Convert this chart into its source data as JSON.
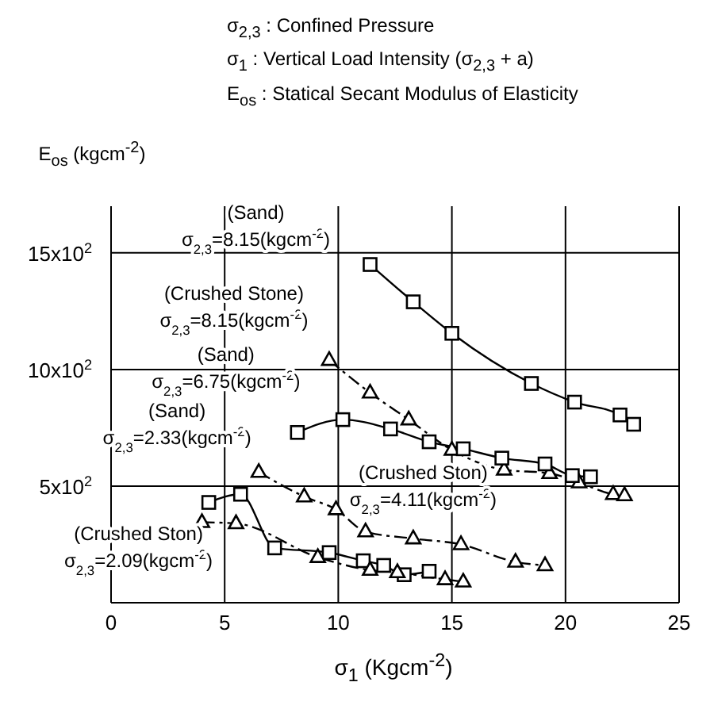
{
  "chart_data": {
    "type": "line",
    "annotations": [
      "σ$_{2,3}$ : Confined Pressure",
      "σ$_{1}$ : Vertical Load Intensity (σ$_{2,3}$ + a)",
      "E$_{os}$ : Statical Secant Modulus of Elasticity"
    ],
    "xlabel": "σ$_{1}$ (Kgcm$^{-2}$)",
    "ylabel": "E$_{os}$ (kgcm$^{-2}$)",
    "xlim": [
      0,
      25
    ],
    "xticks": [
      0,
      5,
      10,
      15,
      20,
      25
    ],
    "ylim": [
      0,
      1700
    ],
    "yticks": [
      {
        "value": 500,
        "label": "5x10$^{2}$"
      },
      {
        "value": 1000,
        "label": "10x10$^{2}$"
      },
      {
        "value": 1500,
        "label": "15x10$^{2}$"
      }
    ],
    "grid": true,
    "series": [
      {
        "name": "(Sand)\nσ$_{2,3}$=8.15(kgcm$^{-2}$)",
        "color": "#000000",
        "marker": "square",
        "line_style": "solid",
        "x": [
          11.4,
          13.3,
          15.0,
          18.5,
          20.4,
          22.4,
          23.0
        ],
        "values": [
          1450,
          1290,
          1155,
          940,
          860,
          805,
          765
        ]
      },
      {
        "name": "(Crushed Stone)\nσ$_{2,3}$=8.15(kgcm$^{-2}$)",
        "color": "#000000",
        "marker": "triangle",
        "line_style": "dashed",
        "x": [
          9.6,
          11.4,
          13.1,
          15.0,
          17.3,
          19.3,
          20.6,
          22.1,
          22.6
        ],
        "values": [
          1040,
          900,
          785,
          655,
          570,
          555,
          515,
          465,
          460
        ]
      },
      {
        "name": "(Sand)\nσ$_{2,3}$=6.75(kgcm$^{-2}$)",
        "color": "#000000",
        "marker": "square",
        "line_style": "solid",
        "x": [
          8.2,
          10.2,
          12.3,
          14.0,
          15.5,
          17.2,
          19.1,
          20.3,
          21.1
        ],
        "values": [
          730,
          785,
          745,
          690,
          660,
          620,
          595,
          545,
          540
        ]
      },
      {
        "name": "(Crushed Ston)\nσ$_{2,3}$=4.11(kgcm$^{-2}$)",
        "color": "#000000",
        "marker": "triangle",
        "line_style": "dashed",
        "x": [
          6.5,
          8.5,
          9.9,
          11.2,
          13.3,
          15.4,
          17.8,
          19.1
        ],
        "values": [
          560,
          455,
          400,
          305,
          275,
          250,
          175,
          160
        ]
      },
      {
        "name": "(Sand)\nσ$_{2,3}$=2.33(kgcm$^{-2}$)",
        "color": "#000000",
        "marker": "square",
        "line_style": "solid",
        "x": [
          4.3,
          5.7,
          7.2,
          9.6,
          11.1,
          12.0,
          12.9,
          14.0
        ],
        "values": [
          430,
          465,
          235,
          215,
          180,
          160,
          120,
          135
        ]
      },
      {
        "name": "(Crushed Ston)\nσ$_{2,3}$=2.09(kgcm$^{-2}$)",
        "color": "#000000",
        "marker": "triangle",
        "line_style": "dashed",
        "x": [
          4.0,
          5.5,
          9.1,
          11.4,
          12.6,
          14.7,
          15.5
        ],
        "values": [
          345,
          340,
          195,
          140,
          130,
          100,
          90
        ]
      }
    ]
  }
}
